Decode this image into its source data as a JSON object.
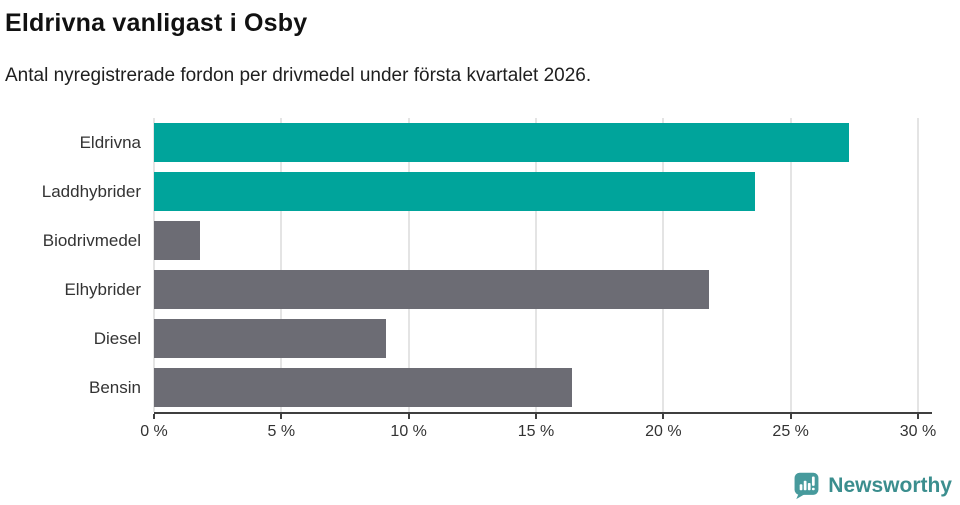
{
  "header": {
    "title": "Eldrivna vanligast i Osby",
    "subtitle": "Antal nyregistrerade fordon per drivmedel under första kvartalet 2026."
  },
  "chart_data": {
    "type": "bar",
    "orientation": "horizontal",
    "title": "Eldrivna vanligast i Osby",
    "subtitle": "Antal nyregistrerade fordon per drivmedel under första kvartalet 2026.",
    "categories": [
      "Eldrivna",
      "Laddhybrider",
      "Biodrivmedel",
      "Elhybrider",
      "Diesel",
      "Bensin"
    ],
    "values": [
      27.3,
      23.6,
      1.8,
      21.8,
      9.1,
      16.4
    ],
    "unit": "%",
    "xlim": [
      0,
      30
    ],
    "x_ticks": [
      {
        "value": 0,
        "label": "0 %"
      },
      {
        "value": 5,
        "label": "5 %"
      },
      {
        "value": 10,
        "label": "10 %"
      },
      {
        "value": 15,
        "label": "15 %"
      },
      {
        "value": 20,
        "label": "20 %"
      },
      {
        "value": 25,
        "label": "25 %"
      },
      {
        "value": 30,
        "label": "30 %"
      }
    ],
    "grid": "vertical gridlines on",
    "legend": "none",
    "colors": {
      "highlight": "#00a49b",
      "default": "#6c6c74",
      "bar_colors": [
        "#00a49b",
        "#00a49b",
        "#6c6c74",
        "#6c6c74",
        "#6c6c74",
        "#6c6c74"
      ],
      "gridline": "#e4e4e4",
      "axis_line": "#3f3f3f",
      "text": "#333333"
    }
  },
  "footer": {
    "brand_label": "Newsworthy",
    "brand_color": "#3b8e8e",
    "logo_icon": "newsworthy-speech-bubble-chart-icon",
    "logo_bg_color": "#479a9c"
  }
}
